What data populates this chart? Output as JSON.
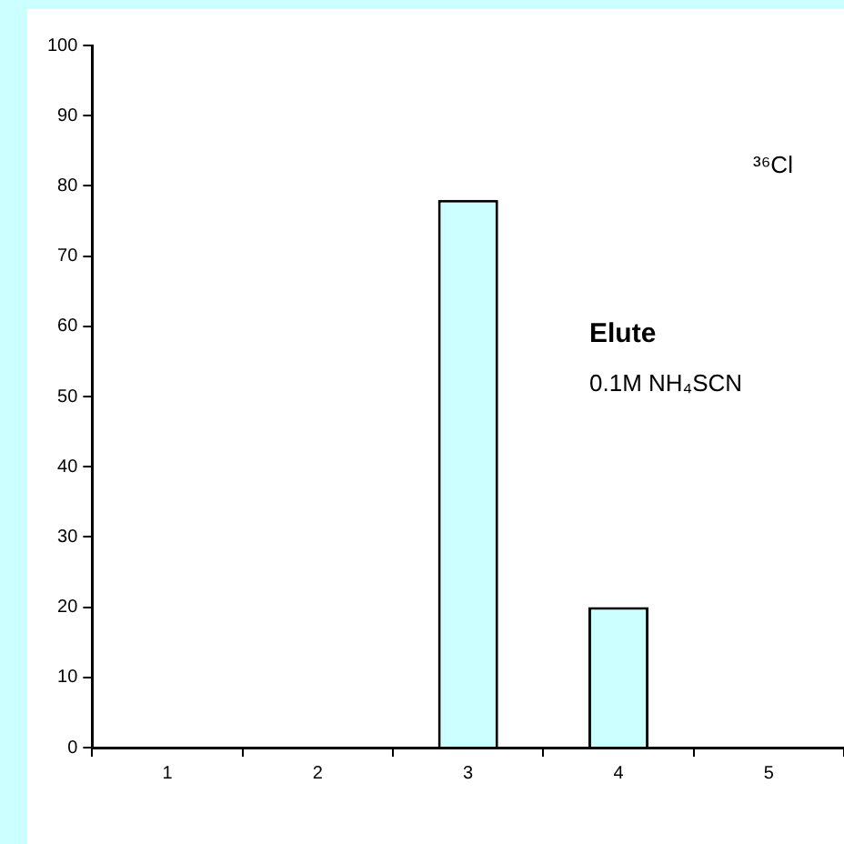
{
  "chart_data": {
    "type": "bar",
    "categories": [
      "1",
      "2",
      "3",
      "4",
      "5"
    ],
    "series": [
      {
        "color": "#ccffff",
        "values": [
          0,
          0,
          78,
          20,
          0
        ]
      }
    ],
    "ylim": [
      0,
      100
    ],
    "yticks": [
      0,
      10,
      20,
      30,
      40,
      50,
      60,
      70,
      80,
      90,
      100
    ],
    "annotations": [
      "³⁶Cl",
      "Elute",
      "0.1M NH₄SCN"
    ],
    "legend": false
  }
}
